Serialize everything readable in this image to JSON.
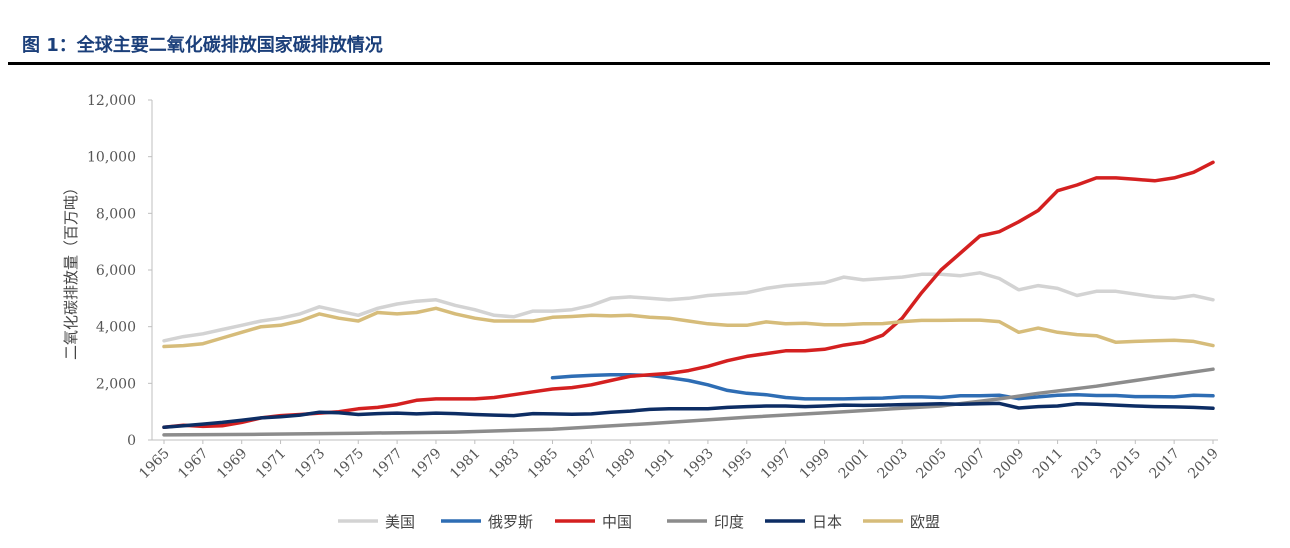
{
  "header": {
    "title": "图 1：全球主要二氧化碳排放国家碳排放情况"
  },
  "chart_data": {
    "type": "line",
    "title": "",
    "xlabel": "",
    "ylabel": "二氧化碳排放量（百万吨）",
    "ylim": [
      0,
      12000
    ],
    "yticks": [
      0,
      2000,
      4000,
      6000,
      8000,
      10000,
      12000
    ],
    "ytick_labels": [
      "0",
      "2,000",
      "4,000",
      "6,000",
      "8,000",
      "10,000",
      "12,000"
    ],
    "x_range": [
      1965,
      2019
    ],
    "xtick_labels": [
      "1965",
      "1967",
      "1969",
      "1971",
      "1973",
      "1975",
      "1977",
      "1979",
      "1981",
      "1983",
      "1985",
      "1987",
      "1989",
      "1991",
      "1993",
      "1995",
      "1997",
      "1999",
      "2001",
      "2003",
      "2005",
      "2007",
      "2009",
      "2011",
      "2013",
      "2015",
      "2017",
      "2019"
    ],
    "grid": false,
    "legend_position": "bottom",
    "series": [
      {
        "name": "美国",
        "color": "#d3d3d3",
        "x": [
          1965,
          1966,
          1967,
          1968,
          1969,
          1970,
          1971,
          1972,
          1973,
          1974,
          1975,
          1976,
          1977,
          1978,
          1979,
          1980,
          1981,
          1982,
          1983,
          1984,
          1985,
          1986,
          1987,
          1988,
          1989,
          1990,
          1991,
          1992,
          1993,
          1994,
          1995,
          1996,
          1997,
          1998,
          1999,
          2000,
          2001,
          2002,
          2003,
          2004,
          2005,
          2006,
          2007,
          2008,
          2009,
          2010,
          2011,
          2012,
          2013,
          2014,
          2015,
          2016,
          2017,
          2018,
          2019
        ],
        "values": [
          3500,
          3650,
          3750,
          3900,
          4050,
          4200,
          4300,
          4450,
          4700,
          4550,
          4400,
          4650,
          4800,
          4900,
          4950,
          4750,
          4600,
          4400,
          4350,
          4550,
          4550,
          4600,
          4750,
          5000,
          5050,
          5000,
          4950,
          5000,
          5100,
          5150,
          5200,
          5350,
          5450,
          5500,
          5550,
          5750,
          5650,
          5700,
          5750,
          5850,
          5850,
          5800,
          5900,
          5700,
          5300,
          5450,
          5350,
          5100,
          5250,
          5250,
          5150,
          5050,
          5000,
          5100,
          4950
        ]
      },
      {
        "name": "俄罗斯",
        "color": "#2e6db4",
        "x": [
          1985,
          1986,
          1987,
          1988,
          1989,
          1990,
          1991,
          1992,
          1993,
          1994,
          1995,
          1996,
          1997,
          1998,
          1999,
          2000,
          2001,
          2002,
          2003,
          2004,
          2005,
          2006,
          2007,
          2008,
          2009,
          2010,
          2011,
          2012,
          2013,
          2014,
          2015,
          2016,
          2017,
          2018,
          2019
        ],
        "values": [
          2200,
          2250,
          2280,
          2300,
          2300,
          2280,
          2200,
          2100,
          1950,
          1750,
          1650,
          1600,
          1500,
          1450,
          1450,
          1450,
          1470,
          1480,
          1520,
          1520,
          1500,
          1560,
          1560,
          1580,
          1460,
          1520,
          1580,
          1600,
          1570,
          1570,
          1530,
          1530,
          1520,
          1580,
          1560
        ]
      },
      {
        "name": "中国",
        "color": "#d42020",
        "x": [
          1965,
          1966,
          1967,
          1968,
          1969,
          1970,
          1971,
          1972,
          1973,
          1974,
          1975,
          1976,
          1977,
          1978,
          1979,
          1980,
          1981,
          1982,
          1983,
          1984,
          1985,
          1986,
          1987,
          1988,
          1989,
          1990,
          1991,
          1992,
          1993,
          1994,
          1995,
          1996,
          1997,
          1998,
          1999,
          2000,
          2001,
          2002,
          2003,
          2004,
          2005,
          2006,
          2007,
          2008,
          2009,
          2010,
          2011,
          2012,
          2013,
          2014,
          2015,
          2016,
          2017,
          2018,
          2019
        ],
        "values": [
          450,
          520,
          480,
          500,
          620,
          780,
          860,
          900,
          950,
          1000,
          1100,
          1150,
          1250,
          1400,
          1450,
          1450,
          1450,
          1500,
          1600,
          1700,
          1800,
          1850,
          1950,
          2100,
          2250,
          2300,
          2350,
          2450,
          2600,
          2800,
          2950,
          3050,
          3150,
          3150,
          3200,
          3350,
          3450,
          3700,
          4300,
          5200,
          6000,
          6600,
          7200,
          7350,
          7700,
          8100,
          8800,
          9000,
          9250,
          9250,
          9200,
          9150,
          9250,
          9450,
          9800
        ]
      },
      {
        "name": "印度",
        "color": "#8c8c8c",
        "x": [
          1965,
          1970,
          1975,
          1980,
          1985,
          1990,
          1995,
          2000,
          2005,
          2008,
          2010,
          2013,
          2015,
          2017,
          2019
        ],
        "values": [
          180,
          200,
          240,
          280,
          380,
          580,
          800,
          1000,
          1200,
          1450,
          1650,
          1900,
          2100,
          2300,
          2500
        ]
      },
      {
        "name": "日本",
        "color": "#0d2d64",
        "x": [
          1965,
          1966,
          1967,
          1968,
          1969,
          1970,
          1971,
          1972,
          1973,
          1974,
          1975,
          1976,
          1977,
          1978,
          1979,
          1980,
          1981,
          1982,
          1983,
          1984,
          1985,
          1986,
          1987,
          1988,
          1989,
          1990,
          1991,
          1992,
          1993,
          1994,
          1995,
          1996,
          1997,
          1998,
          1999,
          2000,
          2001,
          2002,
          2003,
          2004,
          2005,
          2006,
          2007,
          2008,
          2009,
          2010,
          2011,
          2012,
          2013,
          2014,
          2015,
          2016,
          2017,
          2018,
          2019
        ],
        "values": [
          450,
          500,
          560,
          620,
          700,
          780,
          820,
          880,
          980,
          960,
          900,
          930,
          950,
          920,
          950,
          930,
          900,
          880,
          860,
          930,
          920,
          910,
          920,
          980,
          1020,
          1080,
          1100,
          1100,
          1100,
          1150,
          1180,
          1200,
          1200,
          1180,
          1200,
          1230,
          1220,
          1230,
          1250,
          1260,
          1280,
          1260,
          1280,
          1290,
          1130,
          1180,
          1200,
          1280,
          1260,
          1230,
          1200,
          1180,
          1170,
          1150,
          1120
        ]
      },
      {
        "name": "欧盟",
        "color": "#d6bc7a",
        "x": [
          1965,
          1966,
          1967,
          1968,
          1969,
          1970,
          1971,
          1972,
          1973,
          1974,
          1975,
          1976,
          1977,
          1978,
          1979,
          1980,
          1981,
          1982,
          1983,
          1984,
          1985,
          1986,
          1987,
          1988,
          1989,
          1990,
          1991,
          1992,
          1993,
          1994,
          1995,
          1996,
          1997,
          1998,
          1999,
          2000,
          2001,
          2002,
          2003,
          2004,
          2005,
          2006,
          2007,
          2008,
          2009,
          2010,
          2011,
          2012,
          2013,
          2014,
          2015,
          2016,
          2017,
          2018,
          2019
        ],
        "values": [
          3300,
          3330,
          3400,
          3600,
          3800,
          4000,
          4050,
          4200,
          4450,
          4300,
          4200,
          4500,
          4450,
          4500,
          4650,
          4450,
          4300,
          4200,
          4200,
          4200,
          4330,
          4360,
          4400,
          4380,
          4400,
          4330,
          4300,
          4200,
          4100,
          4050,
          4050,
          4170,
          4100,
          4120,
          4070,
          4070,
          4100,
          4110,
          4180,
          4220,
          4220,
          4230,
          4230,
          4180,
          3800,
          3950,
          3800,
          3720,
          3680,
          3450,
          3480,
          3500,
          3520,
          3480,
          3330
        ]
      }
    ]
  }
}
